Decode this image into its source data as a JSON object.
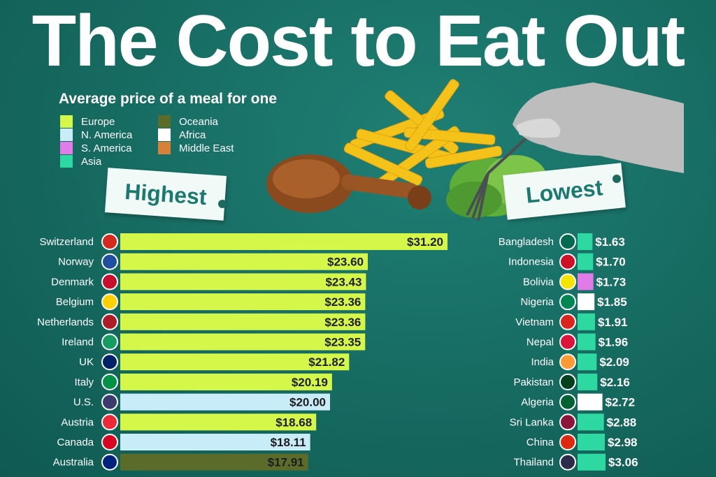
{
  "title": "The Cost to Eat Out",
  "subtitle": "Average price of a meal for one",
  "legend": [
    {
      "label": "Europe",
      "color": "#d4f74a"
    },
    {
      "label": "N. America",
      "color": "#c8ecf8"
    },
    {
      "label": "S. America",
      "color": "#e07be8"
    },
    {
      "label": "Asia",
      "color": "#2dd9a0"
    },
    {
      "label": "Oceania",
      "color": "#5b6b2a"
    },
    {
      "label": "Africa",
      "color": "#ffffff"
    },
    {
      "label": "Middle East",
      "color": "#d6803a"
    }
  ],
  "tags": {
    "highest": "Highest",
    "lowest": "Lowest"
  },
  "chart_data": [
    {
      "type": "bar",
      "orientation": "horizontal",
      "title": "Highest",
      "categories": [
        "Switzerland",
        "Norway",
        "Denmark",
        "Belgium",
        "Netherlands",
        "Ireland",
        "UK",
        "Italy",
        "U.S.",
        "Austria",
        "Canada",
        "Australia"
      ],
      "values": [
        31.2,
        23.6,
        23.43,
        23.36,
        23.36,
        23.35,
        21.82,
        20.19,
        20.0,
        18.68,
        18.11,
        17.91
      ],
      "value_labels": [
        "$31.20",
        "$23.60",
        "$23.43",
        "$23.36",
        "$23.36",
        "$23.35",
        "$21.82",
        "$20.19",
        "$20.00",
        "$18.68",
        "$18.11",
        "$17.91"
      ],
      "regions": [
        "Europe",
        "Europe",
        "Europe",
        "Europe",
        "Europe",
        "Europe",
        "Europe",
        "Europe",
        "N. America",
        "Europe",
        "N. America",
        "Oceania"
      ]
    },
    {
      "type": "bar",
      "orientation": "horizontal",
      "title": "Lowest",
      "categories": [
        "Bangladesh",
        "Indonesia",
        "Bolivia",
        "Nigeria",
        "Vietnam",
        "Nepal",
        "India",
        "Pakistan",
        "Algeria",
        "Sri Lanka",
        "China",
        "Thailand"
      ],
      "values": [
        1.63,
        1.7,
        1.73,
        1.85,
        1.91,
        1.96,
        2.09,
        2.16,
        2.72,
        2.88,
        2.98,
        3.06
      ],
      "value_labels": [
        "$1.63",
        "$1.70",
        "$1.73",
        "$1.85",
        "$1.91",
        "$1.96",
        "$2.09",
        "$2.16",
        "$2.72",
        "$2.88",
        "$2.98",
        "$3.06"
      ],
      "regions": [
        "Asia",
        "Asia",
        "S. America",
        "Africa",
        "Asia",
        "Asia",
        "Asia",
        "Asia",
        "Africa",
        "Asia",
        "Asia",
        "Asia"
      ]
    }
  ]
}
